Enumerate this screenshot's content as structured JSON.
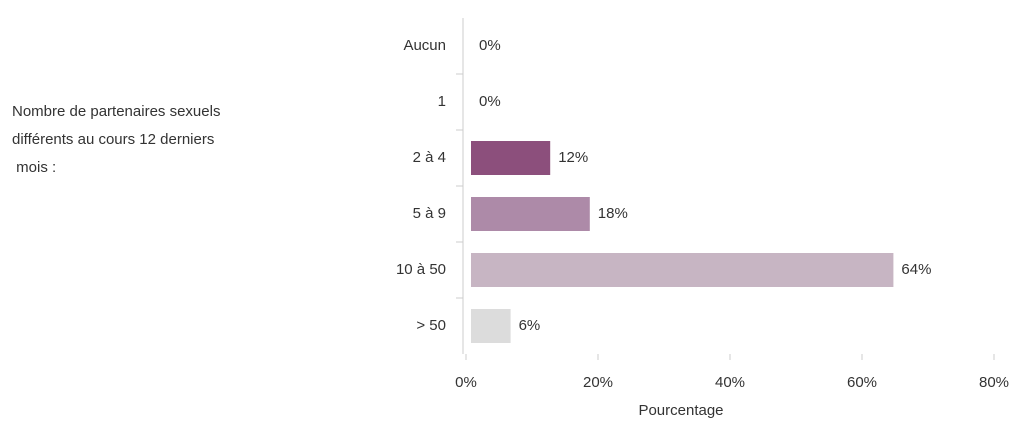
{
  "chart_data": {
    "type": "hbar",
    "title_lines": [
      "Nombre de partenaires sexuels",
      "différents au cours 12 derniers",
      " mois :"
    ],
    "categories": [
      "Aucun",
      "1",
      "2 à 4",
      "5 à 9",
      "10 à 50",
      "> 50"
    ],
    "values": [
      0,
      0,
      12,
      18,
      64,
      6
    ],
    "value_labels": [
      "0%",
      "0%",
      "12%",
      "18%",
      "64%",
      "6%"
    ],
    "colors": [
      "#5e2a52",
      "#74386a",
      "#8c4f7c",
      "#ad8aa8",
      "#c7b5c3",
      "#dcdcdc"
    ],
    "xlabel": "Pourcentage",
    "xlim": [
      0,
      80
    ],
    "xticks": [
      {
        "value": 0,
        "label": "0%"
      },
      {
        "value": 20,
        "label": "20%"
      },
      {
        "value": 40,
        "label": "40%"
      },
      {
        "value": 60,
        "label": "60%"
      },
      {
        "value": 80,
        "label": "80%"
      }
    ]
  }
}
